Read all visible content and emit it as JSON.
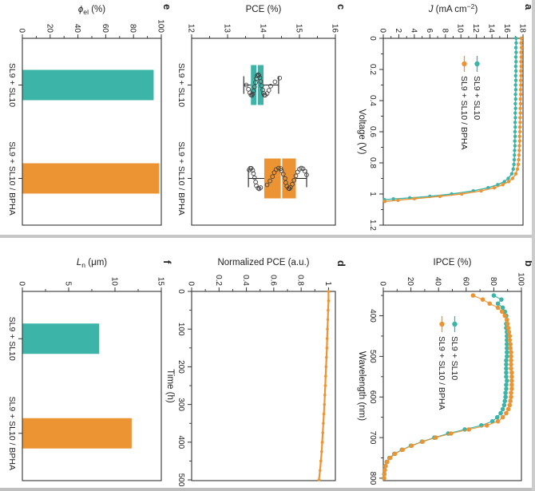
{
  "figure": {
    "background": "#ffffff",
    "colors": {
      "teal": "#3cb4a8",
      "orange": "#ec9434",
      "frame": "#333333",
      "text": "#1f1f1f",
      "median": "#ffffff",
      "scatter_stroke": "#3f3f3f",
      "seam": "#c6c6c6"
    },
    "panel_letters": [
      "a",
      "b",
      "c",
      "d",
      "e",
      "f"
    ]
  },
  "chart_data": [
    {
      "panel": "a",
      "type": "line",
      "ylabel_parts": [
        {
          "t": "J",
          "i": true
        },
        {
          "t": " (mA cm"
        },
        {
          "t": "−2",
          "sup": true
        },
        {
          "t": ")"
        }
      ],
      "xlabel": "Voltage (V)",
      "xlim": [
        0,
        1.2
      ],
      "ylim": [
        0,
        18
      ],
      "xticks": {
        "values": [
          0,
          0.2,
          0.4,
          0.6,
          0.8,
          1,
          1.2
        ],
        "labels": [
          "0",
          "0.2",
          "0.4",
          "0.6",
          "0.8",
          "1",
          "1.2"
        ]
      },
      "xminor": [
        0.1,
        0.3,
        0.5,
        0.7,
        0.9,
        1.1
      ],
      "yticks": {
        "values": [
          0,
          2,
          4,
          6,
          8,
          10,
          12,
          14,
          16,
          18
        ],
        "labels": [
          "0",
          "2",
          "4",
          "6",
          "8",
          "10",
          "12",
          "14",
          "16",
          "18"
        ]
      },
      "yminor": [
        1,
        3,
        5,
        7,
        9,
        11,
        13,
        15,
        17
      ],
      "legend": {
        "labels": [
          "SL9 + SL10",
          "SL9 + SL10 / BPHA"
        ],
        "colors": [
          "teal",
          "orange"
        ]
      },
      "series": [
        {
          "name": "SL9 + SL10",
          "color": "teal",
          "markers": true,
          "x": [
            0,
            0.03,
            0.06,
            0.09,
            0.12,
            0.15,
            0.18,
            0.21,
            0.24,
            0.27,
            0.3,
            0.33,
            0.36,
            0.39,
            0.42,
            0.45,
            0.48,
            0.51,
            0.54,
            0.57,
            0.6,
            0.63,
            0.66,
            0.69,
            0.72,
            0.75,
            0.78,
            0.81,
            0.84,
            0.87,
            0.9,
            0.92,
            0.94,
            0.96,
            0.98,
            1.0,
            1.015,
            1.025,
            1.032,
            1.037
          ],
          "y": [
            17.1,
            17.12,
            17.08,
            17.11,
            17.07,
            17.1,
            17.06,
            17.09,
            17.05,
            17.08,
            17.04,
            17.07,
            17.03,
            17.05,
            17.01,
            17.04,
            17.0,
            17.02,
            16.98,
            17.0,
            16.96,
            16.98,
            16.94,
            16.96,
            16.92,
            16.9,
            16.87,
            16.83,
            16.74,
            16.55,
            16.1,
            15.6,
            14.75,
            13.5,
            11.6,
            8.8,
            6.0,
            3.4,
            1.3,
            0.15
          ]
        },
        {
          "name": "SL9 + SL10 / BPHA",
          "color": "orange",
          "markers": true,
          "x": [
            0,
            0.03,
            0.06,
            0.09,
            0.12,
            0.15,
            0.18,
            0.21,
            0.24,
            0.27,
            0.3,
            0.33,
            0.36,
            0.39,
            0.42,
            0.45,
            0.48,
            0.51,
            0.54,
            0.57,
            0.6,
            0.63,
            0.66,
            0.69,
            0.72,
            0.75,
            0.78,
            0.81,
            0.84,
            0.87,
            0.9,
            0.92,
            0.94,
            0.96,
            0.98,
            1.0,
            1.015,
            1.03,
            1.04,
            1.048
          ],
          "y": [
            17.78,
            17.75,
            17.79,
            17.74,
            17.77,
            17.73,
            17.76,
            17.72,
            17.74,
            17.7,
            17.72,
            17.68,
            17.7,
            17.66,
            17.68,
            17.64,
            17.66,
            17.62,
            17.63,
            17.59,
            17.6,
            17.56,
            17.57,
            17.53,
            17.52,
            17.48,
            17.44,
            17.38,
            17.28,
            17.08,
            16.65,
            16.15,
            15.4,
            14.3,
            12.6,
            10.1,
            7.3,
            4.0,
            1.9,
            0.2
          ]
        }
      ]
    },
    {
      "panel": "b",
      "type": "line",
      "ylabel_parts": [
        {
          "t": "IPCE (%)"
        }
      ],
      "xlabel": "Wavelength (nm)",
      "xlim": [
        340,
        806
      ],
      "ylim": [
        0,
        100
      ],
      "xticks": {
        "values": [
          400,
          500,
          600,
          700,
          800
        ],
        "labels": [
          "400",
          "500",
          "600",
          "700",
          "800"
        ]
      },
      "xminor": [
        350,
        450,
        550,
        650,
        750
      ],
      "yticks": {
        "values": [
          0,
          20,
          40,
          60,
          80,
          100
        ],
        "labels": [
          "0",
          "20",
          "40",
          "60",
          "80",
          "100"
        ]
      },
      "yminor": [
        10,
        30,
        50,
        70,
        90
      ],
      "legend": {
        "labels": [
          "SL9 + SL10",
          "SL9 + SL10 / BPHA"
        ],
        "colors": [
          "teal",
          "orange"
        ]
      },
      "series": [
        {
          "name": "SL9 + SL10",
          "color": "teal",
          "markers": true,
          "big_markers": true,
          "x": [
            350,
            360,
            370,
            380,
            390,
            400,
            410,
            420,
            430,
            440,
            450,
            460,
            470,
            480,
            490,
            500,
            510,
            520,
            530,
            540,
            550,
            560,
            570,
            580,
            590,
            600,
            610,
            620,
            630,
            640,
            650,
            660,
            670,
            680,
            690,
            700,
            710,
            720,
            730,
            740,
            750,
            760,
            770,
            780,
            790,
            800
          ],
          "y": [
            80,
            85.5,
            83,
            86.5,
            88,
            89,
            89.5,
            89,
            89,
            89.5,
            89.5,
            89.5,
            89.5,
            89.5,
            89.5,
            89.5,
            89,
            89,
            89,
            89,
            89,
            89.5,
            89,
            89,
            88.5,
            88.5,
            88,
            87.5,
            86.5,
            85,
            82.5,
            79,
            71,
            59,
            47,
            37,
            28,
            20,
            13.5,
            8,
            4.5,
            2.5,
            1.5,
            1,
            0.7,
            0.5
          ]
        },
        {
          "name": "SL9 + SL10 / BPHA",
          "color": "orange",
          "markers": true,
          "big_markers": true,
          "x": [
            350,
            360,
            370,
            380,
            390,
            400,
            410,
            420,
            430,
            440,
            450,
            460,
            470,
            480,
            490,
            500,
            510,
            520,
            530,
            540,
            550,
            560,
            570,
            580,
            590,
            600,
            610,
            620,
            630,
            640,
            650,
            660,
            670,
            680,
            690,
            700,
            710,
            720,
            730,
            740,
            750,
            760,
            770,
            780,
            790,
            800
          ],
          "y": [
            65,
            72,
            77,
            83,
            86,
            88,
            89.5,
            90,
            90.5,
            91,
            91.5,
            91.5,
            92,
            92,
            92.5,
            92.5,
            92.5,
            92.5,
            92.5,
            93,
            93,
            93,
            93,
            93,
            92.5,
            92.5,
            92,
            91.5,
            90.5,
            89,
            86.5,
            83,
            75,
            62,
            49,
            38,
            28.5,
            20.5,
            14,
            8.5,
            5,
            2.8,
            1.7,
            1.1,
            0.8,
            0.6
          ]
        }
      ]
    },
    {
      "panel": "c",
      "type": "box",
      "ylabel_parts": [
        {
          "t": "PCE (%)"
        }
      ],
      "xlabel": "",
      "ylim": [
        12,
        16
      ],
      "yticks": {
        "values": [
          12,
          13,
          14,
          15,
          16
        ],
        "labels": [
          "12",
          "13",
          "14",
          "15",
          "16"
        ]
      },
      "yminor": [
        12.5,
        13.5,
        14.5,
        15.5
      ],
      "categories": [
        "SL9 + SL10",
        "SL9 + SL10 / BPHA"
      ],
      "boxes": [
        {
          "category": "SL9 + SL10",
          "color": "teal",
          "whisker_low": 13.45,
          "q1": 13.65,
          "median": 13.82,
          "q3": 14.0,
          "whisker_high": 14.42,
          "points": [
            13.52,
            13.58,
            13.62,
            13.65,
            13.68,
            13.7,
            13.72,
            13.75,
            13.78,
            13.8,
            13.82,
            13.85,
            13.87,
            13.9,
            13.92,
            13.95,
            13.98,
            14.0,
            14.02,
            14.05,
            14.1,
            14.15,
            14.2,
            14.32,
            14.45
          ]
        },
        {
          "category": "SL9 + SL10 / BPHA",
          "color": "orange",
          "whisker_low": 13.58,
          "q1": 14.02,
          "median": 14.5,
          "q3": 14.9,
          "whisker_high": 15.2,
          "points": [
            13.6,
            13.63,
            13.66,
            13.7,
            13.72,
            13.75,
            13.78,
            13.8,
            13.85,
            13.88,
            13.92,
            14.1,
            14.18,
            14.25,
            14.3,
            14.35,
            14.42,
            14.48,
            14.5,
            14.55,
            14.6,
            14.62,
            14.65,
            14.7,
            14.72,
            14.75,
            14.8,
            14.85,
            14.9,
            14.95,
            15.0,
            15.05,
            15.1,
            15.15,
            15.2
          ]
        }
      ]
    },
    {
      "panel": "d",
      "type": "line",
      "ylabel_parts": [
        {
          "t": "Normalized PCE (a.u.)"
        }
      ],
      "xlabel": "Time (h)",
      "xlim": [
        0,
        502
      ],
      "ylim": [
        0,
        1.05
      ],
      "xticks": {
        "values": [
          0,
          100,
          200,
          300,
          400,
          500
        ],
        "labels": [
          "0",
          "100",
          "200",
          "300",
          "400",
          "500"
        ]
      },
      "xminor": [
        50,
        150,
        250,
        350,
        450
      ],
      "yticks": {
        "values": [
          0,
          0.2,
          0.4,
          0.6,
          0.8,
          1
        ],
        "labels": [
          "0",
          "0.2",
          "0.4",
          "0.6",
          "0.8",
          "1"
        ]
      },
      "yminor": [
        0.1,
        0.3,
        0.5,
        0.7,
        0.9
      ],
      "series": [
        {
          "name": "SL9 + SL10 / BPHA",
          "color": "orange",
          "markers": true,
          "thick": true,
          "x": [
            0,
            25,
            50,
            75,
            100,
            125,
            150,
            175,
            200,
            225,
            250,
            275,
            300,
            325,
            350,
            375,
            400,
            425,
            450,
            475,
            500
          ],
          "y": [
            1.0,
            1.0,
            0.997,
            0.995,
            0.992,
            0.99,
            0.988,
            0.985,
            0.982,
            0.979,
            0.976,
            0.973,
            0.97,
            0.966,
            0.962,
            0.958,
            0.954,
            0.95,
            0.944,
            0.938,
            0.93
          ]
        }
      ]
    },
    {
      "panel": "e",
      "type": "bar",
      "ylabel_parts": [
        {
          "t": "ϕ",
          "i": true
        },
        {
          "t": "el",
          "sub": true
        },
        {
          "t": " (%)"
        }
      ],
      "xlabel": "",
      "ylim": [
        0,
        100
      ],
      "yticks": {
        "values": [
          0,
          20,
          40,
          60,
          80,
          100
        ],
        "labels": [
          "0",
          "20",
          "40",
          "60",
          "80",
          "100"
        ]
      },
      "yminor": [
        10,
        30,
        50,
        70,
        90
      ],
      "categories": [
        "SL9 + SL10",
        "SL9 + SL10 / BPHA"
      ],
      "values": [
        94.5,
        98.5
      ],
      "bar_colors": [
        "teal",
        "orange"
      ]
    },
    {
      "panel": "f",
      "type": "bar",
      "ylabel_parts": [
        {
          "t": "L",
          "i": true
        },
        {
          "t": "n",
          "sub": true
        },
        {
          "t": " (μm)"
        }
      ],
      "xlabel": "",
      "ylim": [
        0,
        15
      ],
      "yticks": {
        "values": [
          0,
          5,
          10,
          15
        ],
        "labels": [
          "0",
          "5",
          "10",
          "15"
        ]
      },
      "yminor": [
        2.5,
        7.5,
        12.5
      ],
      "categories": [
        "SL9 + SL10",
        "SL9 + SL10 / BPHA"
      ],
      "values": [
        8.3,
        11.8
      ],
      "bar_colors": [
        "teal",
        "orange"
      ]
    }
  ]
}
